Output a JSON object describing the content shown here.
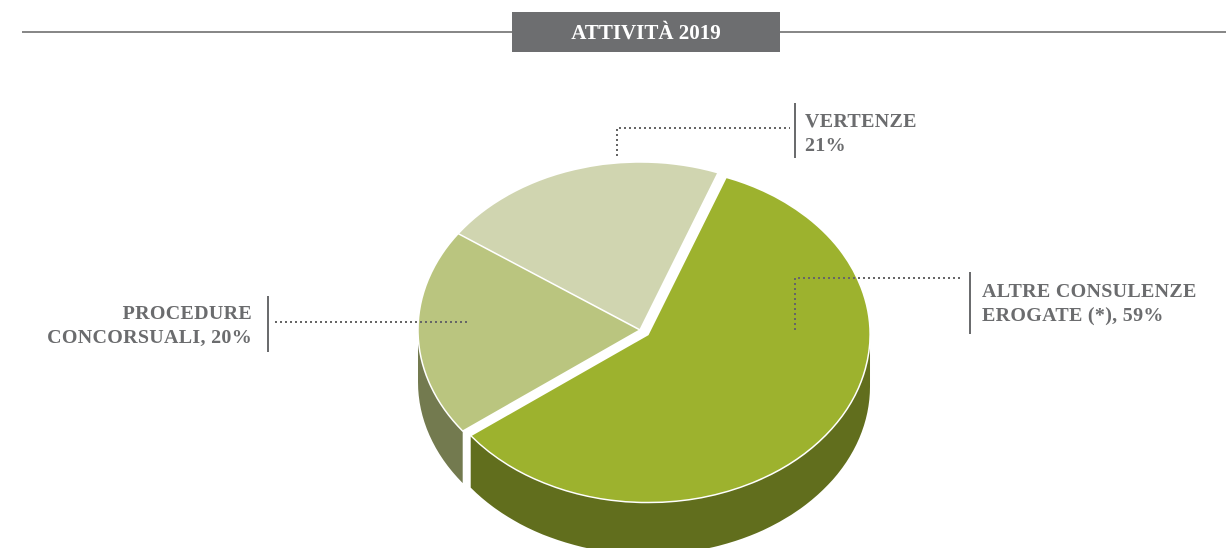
{
  "chart_data": {
    "type": "pie",
    "title": "ATTIVITÀ 2019",
    "categories": [
      "VERTENZE",
      "ALTRE CONSULENZE EROGATE (*),",
      "PROCEDURE CONCORSUALI,"
    ],
    "values": [
      21,
      59,
      20
    ],
    "value_labels": [
      "21%",
      "59%",
      "20%"
    ],
    "colors": [
      "#d0d5b0",
      "#9db22e",
      "#bac57f"
    ]
  }
}
